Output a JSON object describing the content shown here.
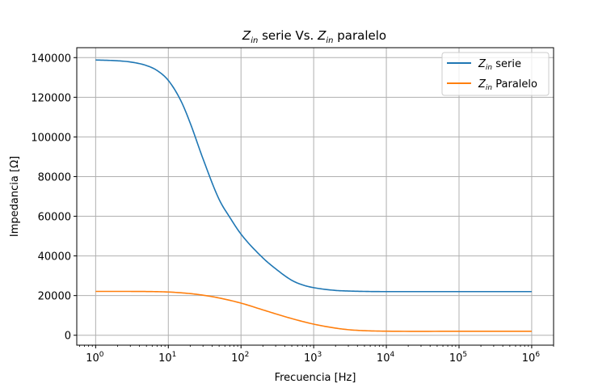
{
  "chart_data": {
    "type": "line",
    "title": {
      "prefix": "Z",
      "sub1": "in",
      "middle": " serie Vs. ",
      "sub2": "in",
      "suffix": " paralelo"
    },
    "xlabel": "Frecuencia [Hz]",
    "ylabel": "Impedancia [Ω]",
    "xscale": "log",
    "xlim": [
      0.55,
      2000000
    ],
    "ylim": [
      -5000,
      145000
    ],
    "x_ticks": [
      {
        "exp": "0",
        "value": 1
      },
      {
        "exp": "1",
        "value": 10
      },
      {
        "exp": "2",
        "value": 100
      },
      {
        "exp": "3",
        "value": 1000
      },
      {
        "exp": "4",
        "value": 10000
      },
      {
        "exp": "5",
        "value": 100000
      },
      {
        "exp": "6",
        "value": 1000000
      }
    ],
    "y_ticks": [
      0,
      20000,
      40000,
      60000,
      80000,
      100000,
      120000,
      140000
    ],
    "y_tick_labels": [
      "0",
      "20000",
      "40000",
      "60000",
      "80000",
      "100000",
      "120000",
      "140000"
    ],
    "grid": true,
    "legend_position": "top-right",
    "series": [
      {
        "name": {
          "base": "Z",
          "sub": "in",
          "rest": " serie"
        },
        "color": "#1f77b4",
        "x": [
          1,
          2,
          3,
          5,
          7,
          10,
          15,
          20,
          30,
          50,
          70,
          100,
          200,
          300,
          500,
          700,
          1000,
          2000,
          3000,
          5000,
          10000,
          100000,
          1000000
        ],
        "y": [
          138800,
          138400,
          137800,
          136000,
          133500,
          128500,
          118000,
          107000,
          89000,
          68500,
          59500,
          51000,
          39000,
          33500,
          27700,
          25400,
          24000,
          22600,
          22300,
          22100,
          22000,
          22000,
          22000
        ]
      },
      {
        "name": {
          "base": "Z",
          "sub": "in",
          "rest": " Paralelo"
        },
        "color": "#ff7f0e",
        "x": [
          1,
          3,
          5,
          10,
          20,
          30,
          50,
          100,
          200,
          300,
          500,
          1000,
          2000,
          3000,
          5000,
          10000,
          100000,
          1000000
        ],
        "y": [
          22100,
          22100,
          22050,
          21800,
          21000,
          20200,
          18800,
          16200,
          12800,
          10800,
          8400,
          5600,
          3600,
          2800,
          2300,
          2050,
          2000,
          2000
        ]
      }
    ]
  }
}
